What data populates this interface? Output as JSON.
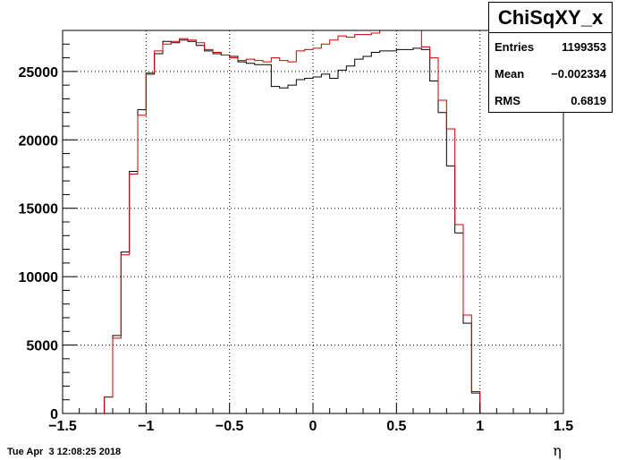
{
  "chart_data": {
    "type": "histogram-step",
    "title": "ChiSqXY_x",
    "xlabel": "η",
    "ylabel": "",
    "xlim": [
      -1.5,
      1.5
    ],
    "ylim": [
      0,
      28000
    ],
    "grid": true,
    "bin_edges_start": -1.4,
    "bin_width": 0.05,
    "x_ticks": [
      -1.5,
      -1,
      -0.5,
      0,
      0.5,
      1,
      1.5
    ],
    "x_tick_labels": [
      "−1.5",
      "−1",
      "−0.5",
      "0",
      "0.5",
      "1",
      "1.5"
    ],
    "y_ticks": [
      0,
      5000,
      10000,
      15000,
      20000,
      25000
    ],
    "y_tick_labels": [
      "0",
      "5000",
      "10000",
      "15000",
      "20000",
      "25000"
    ],
    "series": [
      {
        "color": "#000000",
        "values": [
          0,
          0,
          0,
          1200,
          5700,
          11800,
          17700,
          22200,
          24800,
          26300,
          27200,
          27100,
          27300,
          27200,
          26900,
          26500,
          26300,
          26200,
          26100,
          25700,
          25600,
          25500,
          25500,
          23900,
          23800,
          24000,
          24400,
          24500,
          24600,
          24800,
          24500,
          25100,
          25400,
          25900,
          26100,
          26400,
          26500,
          26500,
          26600,
          26600,
          26700,
          26600,
          24300,
          22000,
          18100,
          13200,
          6600,
          1500,
          0,
          0,
          0,
          0,
          0,
          0
        ]
      },
      {
        "color": "#cc0000",
        "values": [
          0,
          0,
          0,
          1200,
          5500,
          11600,
          17500,
          21800,
          24900,
          26500,
          27000,
          27200,
          27400,
          27300,
          27100,
          26600,
          26400,
          26200,
          26000,
          25800,
          25900,
          25800,
          25700,
          26000,
          25800,
          25700,
          26500,
          26600,
          26700,
          27000,
          27300,
          27600,
          27500,
          27700,
          27700,
          27800,
          28000,
          28100,
          28300,
          28500,
          28200,
          26800,
          26000,
          22900,
          20800,
          13800,
          7200,
          1600,
          0,
          0,
          0,
          0,
          0,
          0
        ]
      }
    ]
  },
  "stats_box": {
    "title": "ChiSqXY_x",
    "rows": [
      {
        "label": "Entries",
        "value": "1199353"
      },
      {
        "label": "Mean",
        "value": "−0.002334"
      },
      {
        "label": "RMS",
        "value": "0.6819"
      }
    ]
  },
  "footer": {
    "timestamp": "Tue Apr  3 12:08:25 2018"
  }
}
